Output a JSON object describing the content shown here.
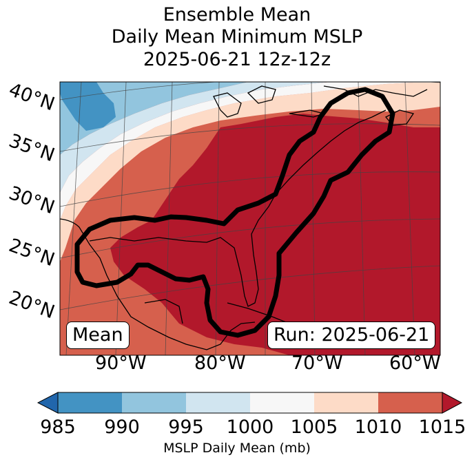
{
  "title": {
    "line1": "Ensemble Mean",
    "line2": "Daily Mean Minimum MSLP",
    "line3": "2025-06-21 12z-12z"
  },
  "map": {
    "lat_labels": [
      "40°N",
      "35°N",
      "30°N",
      "25°N",
      "20°N"
    ],
    "lon_labels": [
      "90°W",
      "80°W",
      "70°W",
      "60°W"
    ],
    "left_box": "Mean",
    "right_box": "Run: 2025-06-21",
    "contour_color": "#000000",
    "coast_color": "#000000"
  },
  "colorbar": {
    "ticks": [
      "985",
      "990",
      "995",
      "1000",
      "1005",
      "1010",
      "1015"
    ],
    "label": "MSLP Daily Mean (mb)",
    "colors": {
      "below": "#2166ac",
      "b985_990": "#4393c3",
      "b990_995": "#92c5de",
      "b995_1000": "#d1e5f0",
      "b1000_1005": "#f7f7f7",
      "b1005_1010": "#fddbc7",
      "b1010_1015": "#d6604d",
      "above": "#b2182b"
    }
  }
}
